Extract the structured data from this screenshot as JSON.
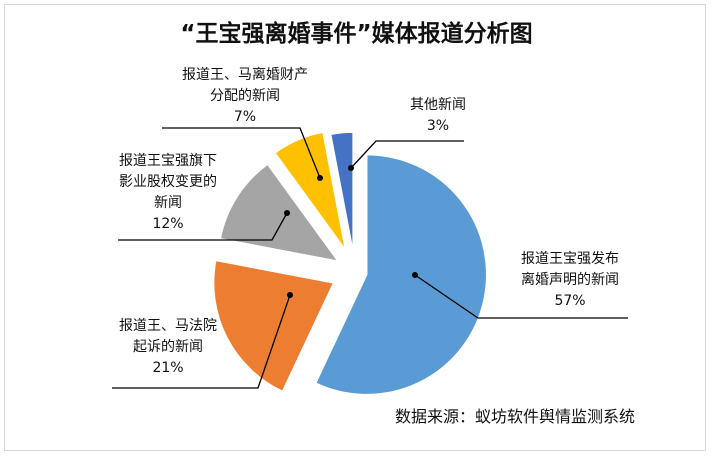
{
  "chart_data": {
    "type": "pie",
    "title": "“王宝强离婚事件”媒体报道分析图",
    "slices": [
      {
        "lines": [
          "报道王宝强发布",
          "离婚声明的新闻"
        ],
        "value": 57,
        "value_label": "57%",
        "color": "#5B9BD5"
      },
      {
        "lines": [
          "报道王、马法院",
          "起诉的新闻"
        ],
        "value": 21,
        "value_label": "21%",
        "color": "#ED7D31"
      },
      {
        "lines": [
          "报道王宝强旗下",
          "影业股权变更的",
          "新闻"
        ],
        "value": 12,
        "value_label": "12%",
        "color": "#A5A5A5"
      },
      {
        "lines": [
          "报道王、马离婚财产",
          "分配的新闻"
        ],
        "value": 7,
        "value_label": "7%",
        "color": "#FFC000"
      },
      {
        "lines": [
          "其他新闻"
        ],
        "value": 3,
        "value_label": "3%",
        "color": "#4472C4"
      }
    ],
    "legend": "none"
  },
  "source": "数据来源：蚁坊软件舆情监测系统"
}
